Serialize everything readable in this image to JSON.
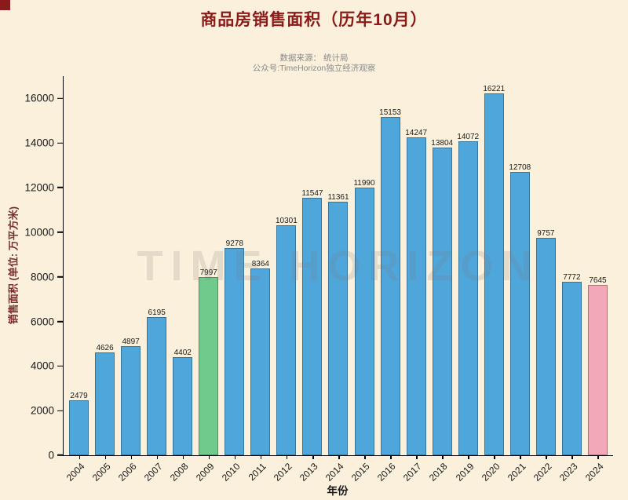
{
  "colors": {
    "background": "#FAF0DB",
    "title": "#8B1A1A",
    "subtitle": "#8A8A8A",
    "y_axis_label": "#7A2E2E",
    "x_axis_label": "#1A1A1A",
    "axis": "#000000",
    "tick_label": "#1A1A1A",
    "bar_default": "#4FA6DB",
    "bar_border": "rgba(0,0,0,0.30)",
    "watermark": "rgba(120,120,120,0.18)",
    "corner_mark": "#8B1A1A"
  },
  "chart_data": {
    "type": "bar",
    "title": "商品房销售面积（历年10月）",
    "source_note": "数据来源： 统计局",
    "account_note": "公众号:TimeHorizon独立经济观察",
    "watermark": "TIME HORIZON",
    "xlabel": "年份",
    "ylabel": "销售面积 (单位: 万平方米)",
    "categories": [
      "2004",
      "2005",
      "2006",
      "2007",
      "2008",
      "2009",
      "2010",
      "2011",
      "2012",
      "2013",
      "2014",
      "2015",
      "2016",
      "2017",
      "2018",
      "2019",
      "2020",
      "2021",
      "2022",
      "2023",
      "2024"
    ],
    "values": [
      2479,
      4626,
      4897,
      6195,
      4402,
      7997,
      9278,
      8364,
      10301,
      11547,
      11361,
      11990,
      15153,
      14247,
      13804,
      14072,
      16221,
      12708,
      9757,
      7772,
      7645
    ],
    "highlight_colors": {
      "2009": "#6ECB8C",
      "2024": "#F2A8B8"
    },
    "ylim": [
      0,
      17000
    ],
    "yticks": [
      0,
      2000,
      4000,
      6000,
      8000,
      10000,
      12000,
      14000,
      16000
    ],
    "grid": false,
    "legend": "none"
  }
}
